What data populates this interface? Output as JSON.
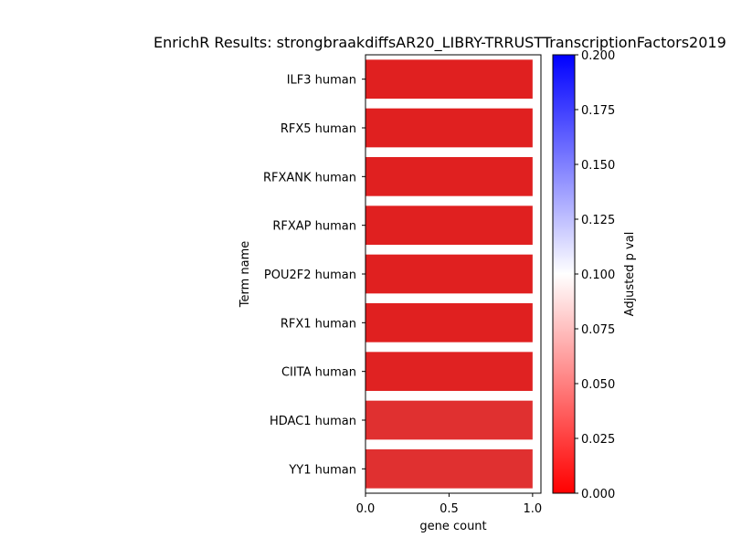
{
  "chart_data": {
    "type": "bar",
    "orientation": "horizontal",
    "title": "EnrichR Results: strongbraakdiffsAR20_LIBRY-TRRUSTTranscriptionFactors2019",
    "xlabel": "gene count",
    "ylabel": "Term name",
    "xlim": [
      0,
      1.05
    ],
    "xticks": [
      "0.0",
      "0.5",
      "1.0"
    ],
    "categories": [
      "ILF3 human",
      "RFX5 human",
      "RFXANK human",
      "RFXAP human",
      "POU2F2 human",
      "RFX1 human",
      "CIITA human",
      "HDAC1 human",
      "YY1 human"
    ],
    "values": [
      1,
      1,
      1,
      1,
      1,
      1,
      1,
      1,
      1
    ],
    "bar_colors": [
      "#e02020",
      "#e02020",
      "#e02020",
      "#e02020",
      "#e02020",
      "#e02020",
      "#e02222",
      "#e03030",
      "#e03030"
    ],
    "colorbar": {
      "label": "Adjusted p val",
      "range": [
        0,
        0.2
      ],
      "ticks": [
        "0.000",
        "0.025",
        "0.050",
        "0.075",
        "0.100",
        "0.125",
        "0.150",
        "0.175",
        "0.200"
      ],
      "colormap": [
        "#ff0000",
        "#ffffff",
        "#0000ff"
      ]
    },
    "grid": false,
    "legend": "none"
  }
}
